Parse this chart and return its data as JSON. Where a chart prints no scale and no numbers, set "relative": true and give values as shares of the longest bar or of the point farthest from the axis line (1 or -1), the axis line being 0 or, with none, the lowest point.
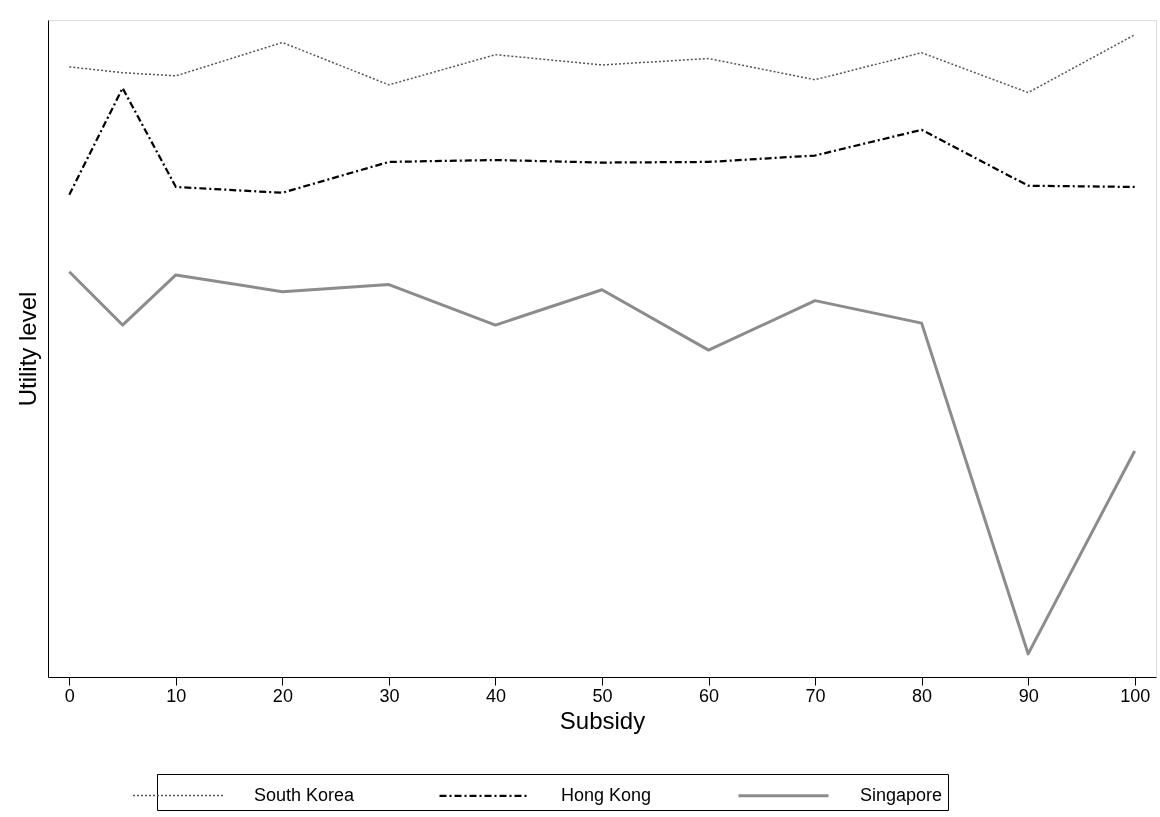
{
  "chart_data": {
    "type": "line",
    "relative": true,
    "xlabel": "Subsidy",
    "ylabel": "Utility level",
    "x": [
      0,
      5,
      10,
      20,
      30,
      40,
      50,
      60,
      70,
      80,
      90,
      100
    ],
    "xlim": [
      -2,
      102
    ],
    "xticks": [
      0,
      10,
      20,
      30,
      40,
      50,
      60,
      70,
      80,
      90,
      100
    ],
    "grid": false,
    "legend": "bottom",
    "marker": "none",
    "series": [
      {
        "name": "South Korea",
        "color": "#555555",
        "line_style": "dotted",
        "values": [
          0.95,
          0.941,
          0.936,
          0.988,
          0.922,
          0.969,
          0.953,
          0.963,
          0.93,
          0.972,
          0.91,
          1.0
        ]
      },
      {
        "name": "Hong Kong",
        "color": "#000000",
        "line_style": "dashed",
        "values": [
          0.751,
          0.917,
          0.763,
          0.754,
          0.802,
          0.805,
          0.801,
          0.802,
          0.812,
          0.852,
          0.765,
          0.763
        ]
      },
      {
        "name": "Singapore",
        "color": "#8c8c8c",
        "line_style": "solid",
        "values": [
          0.631,
          0.548,
          0.626,
          0.6,
          0.611,
          0.548,
          0.603,
          0.509,
          0.586,
          0.551,
          0.036,
          0.352
        ]
      }
    ]
  }
}
